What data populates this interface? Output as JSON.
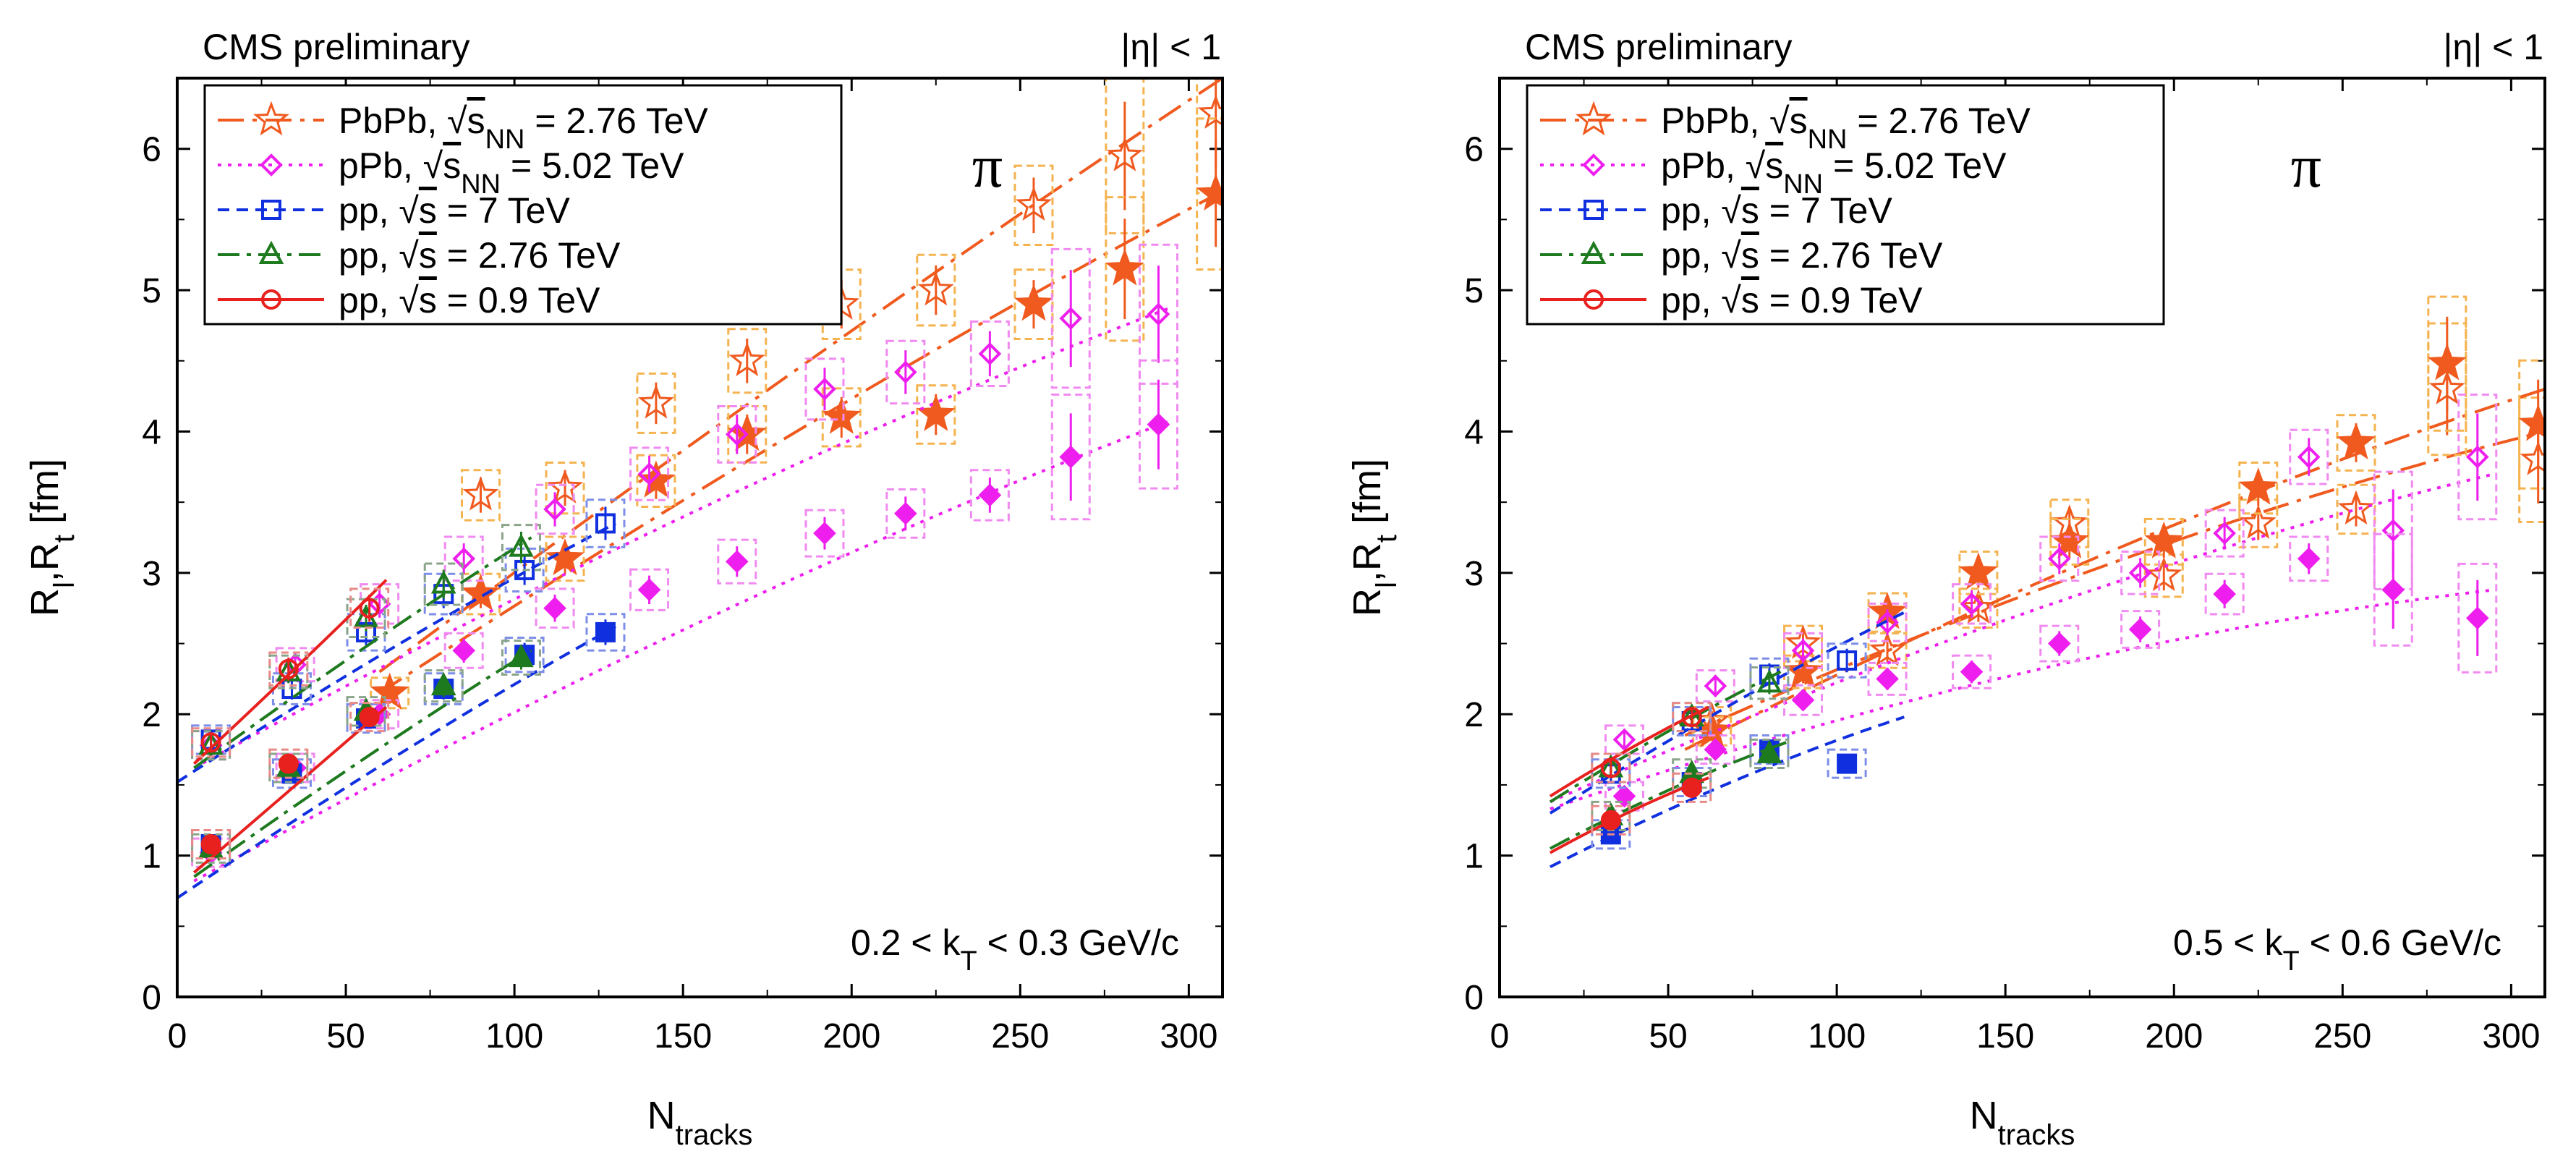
{
  "figure": {
    "xlabel": "N",
    "xlabel_sub": "tracks",
    "ylabel": "R",
    "ylabel_sub1": "l",
    "ylabel_sep": ",R",
    "ylabel_sub2": "t",
    "ylabel_unit": " [fm]",
    "particle": "π",
    "legend": {
      "pbpb": {
        "pre": "PbPb, ",
        "sqrt": "√",
        "s": "s",
        "sub": "NN",
        "post": " = 2.76 TeV"
      },
      "ppb": {
        "pre": "pPb, ",
        "sqrt": "√",
        "s": "s",
        "sub": "NN",
        "post": " = 5.02 TeV"
      },
      "pp7": {
        "pre": "pp, ",
        "sqrt": "√",
        "s": "s",
        "post": " = 7 TeV"
      },
      "pp276": {
        "pre": "pp, ",
        "sqrt": "√",
        "s": "s",
        "post": " = 2.76 TeV"
      },
      "pp09": {
        "pre": "pp, ",
        "sqrt": "√",
        "s": "s",
        "post": " = 0.9 TeV"
      }
    }
  },
  "colors": {
    "pbpb": "#f05a1e",
    "pbpb_box": "#f5b350",
    "ppb": "#ee1fee",
    "ppb_box": "#f08af0",
    "pp7": "#1030e0",
    "pp7_box": "#7d8ee8",
    "pp276": "#1e7a1e",
    "pp276_box": "#8aa48a",
    "pp09": "#e8201e",
    "pp09_box": "#e88a88"
  },
  "chart_data": [
    {
      "type": "scatter",
      "title_left": "CMS preliminary",
      "title_right": "|η| < 1",
      "annotation": "0.2 < k",
      "annotation_sub": "T",
      "annotation_post": " < 0.3 GeV/c",
      "xlim": [
        0,
        310
      ],
      "ylim": [
        0,
        6.5
      ],
      "xticks": [
        0,
        50,
        100,
        150,
        200,
        250,
        300
      ],
      "yticks": [
        0,
        1,
        2,
        3,
        4,
        5,
        6
      ],
      "series": [
        {
          "key": "pbpb",
          "quantity": "Rl",
          "x": [
            90,
            115,
            142,
            169,
            197,
            225,
            254,
            281,
            308
          ],
          "y": [
            3.55,
            3.6,
            4.2,
            4.5,
            4.9,
            5.0,
            5.6,
            5.95,
            6.25
          ],
          "fit": {
            "x": [
              60,
              310
            ],
            "y": [
              2.3,
              6.5
            ]
          }
        },
        {
          "key": "pbpb",
          "quantity": "Rt",
          "x": [
            63,
            90,
            115,
            142,
            169,
            197,
            225,
            254,
            281,
            308
          ],
          "y": [
            2.15,
            2.85,
            3.1,
            3.65,
            3.98,
            4.1,
            4.12,
            4.9,
            5.15,
            5.68
          ],
          "fit": {
            "x": [
              60,
              310
            ],
            "y": [
              2.15,
              5.7
            ]
          }
        },
        {
          "key": "ppb",
          "quantity": "Rl",
          "x": [
            10,
            35,
            60,
            85,
            112,
            140,
            166,
            192,
            216,
            241,
            265,
            291
          ],
          "y": [
            1.78,
            2.35,
            2.78,
            3.1,
            3.45,
            3.7,
            3.98,
            4.3,
            4.42,
            4.55,
            4.8,
            4.83
          ],
          "fit": {
            "x": [
              5,
              295
            ],
            "y": [
              1.62,
              4.88
            ]
          }
        },
        {
          "key": "ppb",
          "quantity": "Rt",
          "x": [
            10,
            35,
            60,
            85,
            112,
            140,
            166,
            192,
            216,
            241,
            265,
            291
          ],
          "y": [
            1.02,
            1.62,
            2.0,
            2.45,
            2.75,
            2.88,
            3.08,
            3.28,
            3.42,
            3.55,
            3.82,
            4.05
          ],
          "fit": {
            "x": [
              5,
              295
            ],
            "y": [
              0.82,
              4.08
            ]
          }
        },
        {
          "key": "pp7",
          "quantity": "Rl",
          "x": [
            10,
            34,
            56,
            79,
            103,
            127
          ],
          "y": [
            1.82,
            2.18,
            2.58,
            2.85,
            3.02,
            3.35
          ],
          "fit": {
            "x": [
              0,
              130
            ],
            "y": [
              1.52,
              3.35
            ]
          }
        },
        {
          "key": "pp7",
          "quantity": "Rt",
          "x": [
            10,
            34,
            56,
            79,
            103,
            127
          ],
          "y": [
            1.08,
            1.58,
            1.97,
            2.18,
            2.42,
            2.58
          ],
          "fit": {
            "x": [
              0,
              130
            ],
            "y": [
              0.7,
              2.62
            ]
          }
        },
        {
          "key": "pp276",
          "quantity": "Rl",
          "x": [
            10,
            33,
            56,
            79,
            102
          ],
          "y": [
            1.78,
            2.3,
            2.68,
            2.92,
            3.18
          ],
          "fit": {
            "x": [
              5,
              105
            ],
            "y": [
              1.62,
              3.25
            ]
          }
        },
        {
          "key": "pp276",
          "quantity": "Rt",
          "x": [
            10,
            33,
            56,
            79,
            102
          ],
          "y": [
            1.05,
            1.62,
            2.02,
            2.2,
            2.4
          ],
          "fit": {
            "x": [
              5,
              105
            ],
            "y": [
              0.85,
              2.45
            ]
          }
        },
        {
          "key": "pp09",
          "quantity": "Rl",
          "x": [
            10,
            33,
            57
          ],
          "y": [
            1.8,
            2.32,
            2.75
          ],
          "fit": {
            "x": [
              5,
              62
            ],
            "y": [
              1.65,
              2.95
            ]
          }
        },
        {
          "key": "pp09",
          "quantity": "Rt",
          "x": [
            10,
            33,
            57
          ],
          "y": [
            1.08,
            1.65,
            1.98
          ],
          "fit": {
            "x": [
              5,
              62
            ],
            "y": [
              0.88,
              2.05
            ]
          }
        }
      ]
    },
    {
      "type": "scatter",
      "title_left": "CMS preliminary",
      "title_right": "|η| < 1",
      "annotation": "0.5 < k",
      "annotation_sub": "T",
      "annotation_post": " < 0.6 GeV/c",
      "xlim": [
        0,
        310
      ],
      "ylim": [
        0,
        6.5
      ],
      "xticks": [
        0,
        50,
        100,
        150,
        200,
        250,
        300
      ],
      "yticks": [
        0,
        1,
        2,
        3,
        4,
        5,
        6
      ],
      "series": [
        {
          "key": "pbpb",
          "quantity": "Rl",
          "x": [
            63,
            90,
            115,
            142,
            169,
            197,
            225,
            254,
            281,
            308
          ],
          "y": [
            1.95,
            2.5,
            2.45,
            2.75,
            3.35,
            2.98,
            3.35,
            3.45,
            4.3,
            3.8
          ],
          "fit": {
            "x": [
              55,
              310
            ],
            "y": [
              1.85,
              4.0
            ]
          }
        },
        {
          "key": "pbpb",
          "quantity": "Rt",
          "x": [
            63,
            90,
            115,
            142,
            169,
            197,
            225,
            254,
            281,
            308
          ],
          "y": [
            1.88,
            2.3,
            2.72,
            3.0,
            3.22,
            3.22,
            3.6,
            3.92,
            4.48,
            4.05
          ],
          "fit": {
            "x": [
              55,
              310
            ],
            "y": [
              1.75,
              4.3
            ]
          }
        },
        {
          "key": "ppb",
          "quantity": "Rl",
          "x": [
            37,
            64,
            90,
            115,
            140,
            166,
            190,
            215,
            240,
            265,
            290
          ],
          "y": [
            1.82,
            2.2,
            2.45,
            2.65,
            2.78,
            3.1,
            3.0,
            3.28,
            3.82,
            3.3,
            3.82
          ],
          "fit": {
            "x": [
              15,
              295
            ],
            "y": [
              1.38,
              3.7
            ]
          }
        },
        {
          "key": "ppb",
          "quantity": "Rt",
          "x": [
            37,
            64,
            90,
            115,
            140,
            166,
            190,
            215,
            240,
            265,
            290
          ],
          "y": [
            1.42,
            1.75,
            2.1,
            2.25,
            2.3,
            2.5,
            2.6,
            2.85,
            3.1,
            2.88,
            2.68
          ],
          "fit": {
            "x": [
              15,
              295
            ],
            "y": [
              1.33,
              2.88
            ]
          }
        },
        {
          "key": "pp7",
          "quantity": "Rl",
          "x": [
            33,
            57,
            80,
            103
          ],
          "y": [
            1.58,
            1.95,
            2.28,
            2.38
          ],
          "fit": {
            "x": [
              15,
              120
            ],
            "y": [
              1.3,
              2.72
            ]
          }
        },
        {
          "key": "pp7",
          "quantity": "Rt",
          "x": [
            33,
            57,
            80,
            103
          ],
          "y": [
            1.15,
            1.52,
            1.75,
            1.65
          ],
          "fit": {
            "x": [
              15,
              120
            ],
            "y": [
              0.92,
              1.98
            ]
          }
        },
        {
          "key": "pp276",
          "quantity": "Rl",
          "x": [
            33,
            57,
            80
          ],
          "y": [
            1.62,
            1.98,
            2.22
          ],
          "fit": {
            "x": [
              15,
              85
            ],
            "y": [
              1.38,
              2.32
            ]
          }
        },
        {
          "key": "pp276",
          "quantity": "Rt",
          "x": [
            33,
            57,
            80
          ],
          "y": [
            1.28,
            1.58,
            1.72
          ],
          "fit": {
            "x": [
              15,
              85
            ],
            "y": [
              1.05,
              1.8
            ]
          }
        },
        {
          "key": "pp09",
          "quantity": "Rl",
          "x": [
            33,
            57
          ],
          "y": [
            1.62,
            1.98
          ],
          "fit": {
            "x": [
              15,
              62
            ],
            "y": [
              1.42,
              2.05
            ]
          }
        },
        {
          "key": "pp09",
          "quantity": "Rt",
          "x": [
            33,
            57
          ],
          "y": [
            1.25,
            1.48
          ],
          "fit": {
            "x": [
              15,
              62
            ],
            "y": [
              1.02,
              1.55
            ]
          }
        }
      ]
    }
  ]
}
